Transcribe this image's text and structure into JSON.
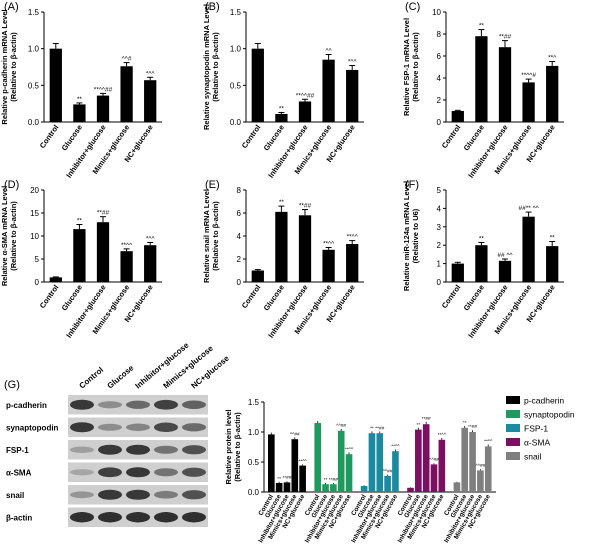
{
  "figure": {
    "groups": [
      "Control",
      "Glucose",
      "Inhibitor+glucose",
      "Mimics+glucose",
      "NC+glucose"
    ]
  },
  "chart_data": [
    {
      "panel": "(A)",
      "type": "bar",
      "ylabel": [
        "Relative p-cadherin mRNA Level",
        "(Relative to β-actin)"
      ],
      "ylim": [
        0,
        1.5
      ],
      "yticks": [
        0.0,
        0.5,
        1.0,
        1.5
      ],
      "ytick_labels": [
        "0.0",
        "0.5",
        "1.0",
        "1.5"
      ],
      "categories": [
        "Control",
        "Glucose",
        "Inhibitor+glucose",
        "Mimics+glucose",
        "NC+glucose"
      ],
      "values": [
        1.0,
        0.24,
        0.36,
        0.76,
        0.57
      ],
      "errors": [
        0.07,
        0.02,
        0.03,
        0.05,
        0.04
      ],
      "annotations": [
        "",
        "**",
        "**^^##",
        "^^#",
        "*^^"
      ]
    },
    {
      "panel": "(B)",
      "type": "bar",
      "ylabel": [
        "Relative synaptopodin mRNA Level",
        "(Relative to β-actin)"
      ],
      "ylim": [
        0,
        1.5
      ],
      "yticks": [
        0.0,
        0.5,
        1.0,
        1.5
      ],
      "ytick_labels": [
        "0.0",
        "0.5",
        "1.0",
        "1.5"
      ],
      "categories": [
        "Control",
        "Glucose",
        "Inhibitor+glucose",
        "Mimics+glucose",
        "NC+glucose"
      ],
      "values": [
        1.0,
        0.11,
        0.28,
        0.85,
        0.71
      ],
      "errors": [
        0.07,
        0.02,
        0.03,
        0.07,
        0.06
      ],
      "annotations": [
        "",
        "**",
        "**^^##",
        "^^",
        "*^^"
      ]
    },
    {
      "panel": "(C)",
      "type": "bar",
      "ylabel": [
        "Relative FSP-1 mRNA Level",
        "(Relative to β-actin)"
      ],
      "ylim": [
        0,
        10
      ],
      "yticks": [
        0,
        2,
        4,
        6,
        8,
        10
      ],
      "ytick_labels": [
        "0",
        "2",
        "4",
        "6",
        "8",
        "10"
      ],
      "categories": [
        "Control",
        "Glucose",
        "Inhibitor+glucose",
        "Mimics+glucose",
        "NC+glucose"
      ],
      "values": [
        1.0,
        7.8,
        6.8,
        3.6,
        5.1
      ],
      "errors": [
        0.06,
        0.6,
        0.6,
        0.3,
        0.4
      ],
      "annotations": [
        "",
        "**",
        "**##",
        "**^^#",
        "**^"
      ]
    },
    {
      "panel": "(D)",
      "type": "bar",
      "ylabel": [
        "Relative α-SMA mRNA Level",
        "(Relative to β-actin)"
      ],
      "ylim": [
        0,
        20
      ],
      "yticks": [
        0,
        5,
        10,
        15,
        20
      ],
      "ytick_labels": [
        "0",
        "5",
        "10",
        "15",
        "20"
      ],
      "categories": [
        "Control",
        "Glucose",
        "Inhibitor+glucose",
        "Mimics+glucose",
        "NC+glucose"
      ],
      "values": [
        1.0,
        11.5,
        13.0,
        6.7,
        8.0
      ],
      "errors": [
        0.1,
        1.0,
        1.2,
        0.5,
        0.6
      ],
      "annotations": [
        "",
        "**",
        "**##",
        "**^^",
        "*^^"
      ]
    },
    {
      "panel": "(E)",
      "type": "bar",
      "ylabel": [
        "Relative snail mRNA Level",
        "(Relative to β-actin)"
      ],
      "ylim": [
        0,
        8
      ],
      "yticks": [
        0,
        2,
        4,
        6,
        8
      ],
      "ytick_labels": [
        "0",
        "2",
        "4",
        "6",
        "8"
      ],
      "categories": [
        "Control",
        "Glucose",
        "Inhibitor+glucose",
        "Mimics+glucose",
        "NC+glucose"
      ],
      "values": [
        1.0,
        6.1,
        5.8,
        2.8,
        3.3
      ],
      "errors": [
        0.08,
        0.5,
        0.5,
        0.2,
        0.3
      ],
      "annotations": [
        "",
        "**",
        "**##",
        "**^^",
        "**^^"
      ]
    },
    {
      "panel": "(F)",
      "type": "bar",
      "ylabel": [
        "Relative miR-124a mRNA Level",
        "(Relative to U6)"
      ],
      "ylim": [
        0,
        5
      ],
      "yticks": [
        0,
        1,
        2,
        3,
        4,
        5
      ],
      "ytick_labels": [
        "0",
        "1",
        "2",
        "3",
        "4",
        "5"
      ],
      "categories": [
        "Control",
        "Glucose",
        "Inhibitor+glucose",
        "Mimics+glucose",
        "NC+glucose"
      ],
      "values": [
        1.0,
        2.0,
        1.15,
        3.55,
        1.95
      ],
      "errors": [
        0.07,
        0.15,
        0.1,
        0.25,
        0.25
      ],
      "annotations": [
        "",
        "**",
        "## ^^",
        "##** ^^",
        "**"
      ]
    },
    {
      "panel": "(G)",
      "type": "bar",
      "ylabel": [
        "Relative protein level",
        "(Relative to β-actin)"
      ],
      "ylim": [
        0,
        1.5
      ],
      "yticks": [
        0.0,
        0.5,
        1.0,
        1.5
      ],
      "ytick_labels": [
        "0.0",
        "0.5",
        "1.0",
        "1.5"
      ],
      "categories": [
        "Control",
        "Glucose",
        "Inhibitor+glucose",
        "Mimics+glucose",
        "NC+glucose"
      ],
      "series": [
        {
          "name": "p-cadherin",
          "color": "#000000",
          "values": [
            0.96,
            0.15,
            0.16,
            0.88,
            0.44
          ],
          "errors": [
            0.03,
            0.02,
            0.02,
            0.03,
            0.02
          ],
          "annotations": [
            "",
            "**",
            "**##",
            "^^##",
            "**^^"
          ]
        },
        {
          "name": "synaptopodin",
          "color": "#1d9a5e",
          "values": [
            1.15,
            0.13,
            0.13,
            1.02,
            0.63
          ],
          "errors": [
            0.03,
            0.02,
            0.02,
            0.03,
            0.03
          ],
          "annotations": [
            "",
            "**",
            "**##",
            "^^##",
            "**^^"
          ]
        },
        {
          "name": "FSP-1",
          "color": "#1a8aa0",
          "values": [
            0.1,
            0.98,
            0.98,
            0.27,
            0.68
          ],
          "errors": [
            0.01,
            0.03,
            0.03,
            0.02,
            0.03
          ],
          "annotations": [
            "",
            "**",
            "**##",
            "^^##",
            "**^^"
          ]
        },
        {
          "name": "α-SMA",
          "color": "#7a1060",
          "values": [
            0.07,
            1.04,
            1.13,
            0.46,
            0.87
          ],
          "errors": [
            0.01,
            0.03,
            0.04,
            0.02,
            0.03
          ],
          "annotations": [
            "",
            "**",
            "**##",
            "^^##",
            "**^^"
          ]
        },
        {
          "name": "snail",
          "color": "#7f7f7f",
          "values": [
            0.16,
            1.07,
            1.0,
            0.36,
            0.76
          ],
          "errors": [
            0.01,
            0.03,
            0.03,
            0.02,
            0.03
          ],
          "annotations": [
            "",
            "**",
            "**##",
            "^^##",
            "**^^"
          ]
        }
      ],
      "legend": "right"
    }
  ],
  "blot": {
    "panel": "(G)",
    "columns": [
      "Control",
      "Glucose",
      "Inhibitor+glucose",
      "Mimics+glucose",
      "NC+glucose"
    ],
    "rows": [
      {
        "label": "p-cadherin",
        "intensity": [
          0.85,
          0.35,
          0.55,
          0.8,
          0.6
        ]
      },
      {
        "label": "synaptopodin",
        "intensity": [
          0.85,
          0.35,
          0.4,
          0.75,
          0.55
        ]
      },
      {
        "label": "FSP-1",
        "intensity": [
          0.25,
          0.85,
          0.85,
          0.5,
          0.7
        ]
      },
      {
        "label": "α-SMA",
        "intensity": [
          0.2,
          0.8,
          0.85,
          0.5,
          0.7
        ]
      },
      {
        "label": "snail",
        "intensity": [
          0.3,
          0.85,
          0.85,
          0.45,
          0.7
        ]
      },
      {
        "label": "β-actin",
        "intensity": [
          0.9,
          0.9,
          0.9,
          0.9,
          0.9
        ]
      }
    ]
  }
}
